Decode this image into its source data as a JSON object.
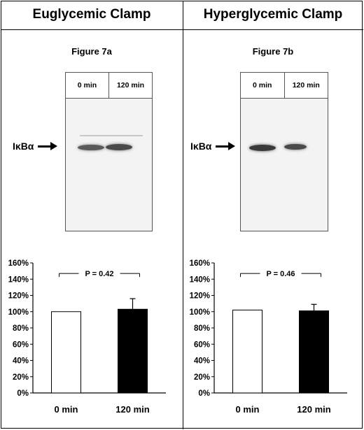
{
  "panels": [
    {
      "title": "Euglycemic Clamp",
      "figure_label": "Figure 7a",
      "blot": {
        "lane_labels": [
          "0 min",
          "120 min"
        ],
        "marker_label": "IκBα"
      }
    },
    {
      "title": "Hyperglycemic Clamp",
      "figure_label": "Figure 7b",
      "blot": {
        "lane_labels": [
          "0 min",
          "120 min"
        ],
        "marker_label": "IκBα"
      }
    }
  ],
  "chart_data": [
    {
      "type": "bar",
      "categories": [
        "0 min",
        "120 min"
      ],
      "values": [
        100,
        103
      ],
      "errors": [
        0,
        13
      ],
      "bar_colors": [
        "#ffffff",
        "#000000"
      ],
      "yticks": [
        "0%",
        "20%",
        "40%",
        "60%",
        "80%",
        "100%",
        "120%",
        "140%",
        "160%"
      ],
      "ylim": [
        0,
        160
      ],
      "annotation": "P = 0.42",
      "xlabel": "",
      "ylabel": ""
    },
    {
      "type": "bar",
      "categories": [
        "0 min",
        "120 min"
      ],
      "values": [
        102,
        101
      ],
      "errors": [
        0,
        8
      ],
      "bar_colors": [
        "#ffffff",
        "#000000"
      ],
      "yticks": [
        "0%",
        "20%",
        "40%",
        "60%",
        "80%",
        "100%",
        "120%",
        "140%",
        "160%"
      ],
      "ylim": [
        0,
        160
      ],
      "annotation": "P = 0.46",
      "xlabel": "",
      "ylabel": ""
    }
  ]
}
